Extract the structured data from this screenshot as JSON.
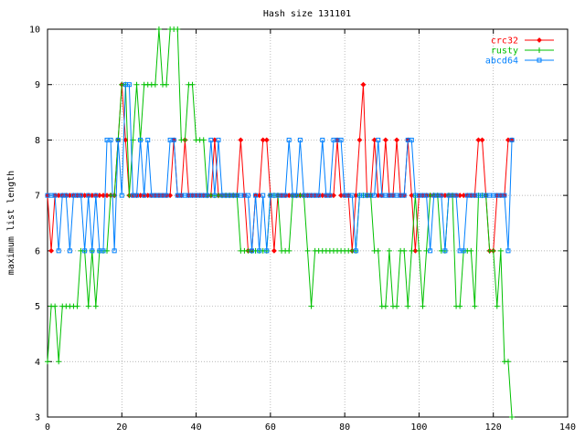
{
  "chart_data": {
    "type": "line",
    "title": "Hash size 131101",
    "xlabel": "",
    "ylabel": "maximum list length",
    "xlim": [
      0,
      140
    ],
    "ylim": [
      3,
      10
    ],
    "xticks": [
      0,
      20,
      40,
      60,
      80,
      100,
      120,
      140
    ],
    "yticks": [
      3,
      4,
      5,
      6,
      7,
      8,
      9,
      10
    ],
    "grid": true,
    "legend": "top-right",
    "series": [
      {
        "name": "crc32",
        "color": "#ff0000",
        "marker": "diamond",
        "x": [
          0,
          1,
          2,
          3,
          4,
          5,
          6,
          7,
          8,
          9,
          10,
          11,
          12,
          13,
          14,
          15,
          16,
          17,
          18,
          19,
          20,
          21,
          22,
          23,
          24,
          25,
          26,
          27,
          28,
          29,
          30,
          31,
          32,
          33,
          34,
          35,
          36,
          37,
          38,
          39,
          40,
          41,
          42,
          43,
          44,
          45,
          46,
          47,
          48,
          49,
          50,
          51,
          52,
          53,
          54,
          55,
          56,
          57,
          58,
          59,
          60,
          61,
          62,
          63,
          64,
          65,
          66,
          67,
          68,
          69,
          70,
          71,
          72,
          73,
          74,
          75,
          76,
          77,
          78,
          79,
          80,
          81,
          82,
          83,
          84,
          85,
          86,
          87,
          88,
          89,
          90,
          91,
          92,
          93,
          94,
          95,
          96,
          97,
          98,
          99,
          100,
          101,
          102,
          103,
          104,
          105,
          106,
          107,
          108,
          109,
          110,
          111,
          112,
          113,
          114,
          115,
          116,
          117,
          118,
          119,
          120,
          121,
          122,
          123,
          124,
          125
        ],
        "values": [
          7,
          6,
          7,
          7,
          7,
          7,
          7,
          7,
          7,
          7,
          7,
          7,
          7,
          7,
          7,
          7,
          7,
          7,
          7,
          8,
          9,
          8,
          7,
          7,
          7,
          7,
          7,
          7,
          7,
          7,
          7,
          7,
          7,
          7,
          8,
          7,
          7,
          8,
          7,
          7,
          7,
          7,
          7,
          7,
          7,
          8,
          7,
          7,
          7,
          7,
          7,
          7,
          8,
          7,
          6,
          6,
          7,
          7,
          8,
          8,
          7,
          6,
          7,
          7,
          7,
          7,
          7,
          7,
          7,
          7,
          7,
          7,
          7,
          7,
          7,
          7,
          7,
          7,
          8,
          7,
          7,
          7,
          6,
          7,
          8,
          9,
          7,
          7,
          8,
          7,
          7,
          8,
          7,
          7,
          8,
          7,
          7,
          8,
          7,
          6,
          7,
          7,
          7,
          7,
          7,
          7,
          7,
          7,
          7,
          7,
          7,
          7,
          7,
          7,
          7,
          7,
          8,
          8,
          7,
          6,
          6,
          7,
          7,
          7,
          8,
          8
        ]
      },
      {
        "name": "rusty",
        "color": "#00c000",
        "marker": "plus",
        "x": [
          0,
          1,
          2,
          3,
          4,
          5,
          6,
          7,
          8,
          9,
          10,
          11,
          12,
          13,
          14,
          15,
          16,
          17,
          18,
          19,
          20,
          21,
          22,
          23,
          24,
          25,
          26,
          27,
          28,
          29,
          30,
          31,
          32,
          33,
          34,
          35,
          36,
          37,
          38,
          39,
          40,
          41,
          42,
          43,
          44,
          45,
          46,
          47,
          48,
          49,
          50,
          51,
          52,
          53,
          54,
          55,
          56,
          57,
          58,
          59,
          60,
          61,
          62,
          63,
          64,
          65,
          66,
          67,
          68,
          69,
          70,
          71,
          72,
          73,
          74,
          75,
          76,
          77,
          78,
          79,
          80,
          81,
          82,
          83,
          84,
          85,
          86,
          87,
          88,
          89,
          90,
          91,
          92,
          93,
          94,
          95,
          96,
          97,
          98,
          99,
          100,
          101,
          102,
          103,
          104,
          105,
          106,
          107,
          108,
          109,
          110,
          111,
          112,
          113,
          114,
          115,
          116,
          117,
          118,
          119,
          120,
          121,
          122,
          123,
          124,
          125
        ],
        "values": [
          4,
          5,
          5,
          4,
          5,
          5,
          5,
          5,
          5,
          6,
          6,
          5,
          6,
          5,
          6,
          6,
          6,
          7,
          7,
          8,
          9,
          9,
          7,
          8,
          9,
          8,
          9,
          9,
          9,
          9,
          10,
          9,
          9,
          10,
          10,
          10,
          8,
          8,
          9,
          9,
          8,
          8,
          8,
          7,
          7,
          7,
          7,
          7,
          7,
          7,
          7,
          7,
          6,
          6,
          6,
          6,
          6,
          6,
          6,
          6,
          7,
          7,
          7,
          6,
          6,
          6,
          7,
          7,
          7,
          7,
          6,
          5,
          6,
          6,
          6,
          6,
          6,
          6,
          6,
          6,
          6,
          6,
          6,
          6,
          7,
          7,
          7,
          7,
          6,
          6,
          5,
          5,
          6,
          5,
          5,
          6,
          6,
          5,
          6,
          7,
          6,
          5,
          6,
          7,
          7,
          7,
          6,
          6,
          7,
          7,
          5,
          5,
          6,
          6,
          6,
          5,
          7,
          7,
          7,
          6,
          6,
          5,
          6,
          4,
          4,
          3
        ]
      },
      {
        "name": "abcd64",
        "color": "#0080ff",
        "marker": "square",
        "x": [
          0,
          1,
          2,
          3,
          4,
          5,
          6,
          7,
          8,
          9,
          10,
          11,
          12,
          13,
          14,
          15,
          16,
          17,
          18,
          19,
          20,
          21,
          22,
          23,
          24,
          25,
          26,
          27,
          28,
          29,
          30,
          31,
          32,
          33,
          34,
          35,
          36,
          37,
          38,
          39,
          40,
          41,
          42,
          43,
          44,
          45,
          46,
          47,
          48,
          49,
          50,
          51,
          52,
          53,
          54,
          55,
          56,
          57,
          58,
          59,
          60,
          61,
          62,
          63,
          64,
          65,
          66,
          67,
          68,
          69,
          70,
          71,
          72,
          73,
          74,
          75,
          76,
          77,
          78,
          79,
          80,
          81,
          82,
          83,
          84,
          85,
          86,
          87,
          88,
          89,
          90,
          91,
          92,
          93,
          94,
          95,
          96,
          97,
          98,
          99,
          100,
          101,
          102,
          103,
          104,
          105,
          106,
          107,
          108,
          109,
          110,
          111,
          112,
          113,
          114,
          115,
          116,
          117,
          118,
          119,
          120,
          121,
          122,
          123,
          124,
          125
        ],
        "values": [
          7,
          7,
          7,
          6,
          7,
          7,
          6,
          7,
          7,
          7,
          6,
          7,
          6,
          7,
          6,
          6,
          8,
          8,
          6,
          8,
          7,
          9,
          9,
          7,
          7,
          8,
          7,
          8,
          7,
          7,
          7,
          7,
          7,
          8,
          8,
          7,
          7,
          7,
          7,
          7,
          7,
          7,
          7,
          7,
          8,
          7,
          8,
          7,
          7,
          7,
          7,
          7,
          7,
          7,
          7,
          6,
          7,
          6,
          7,
          6,
          7,
          7,
          7,
          7,
          7,
          8,
          7,
          7,
          8,
          7,
          7,
          7,
          7,
          7,
          8,
          7,
          7,
          8,
          8,
          8,
          7,
          7,
          7,
          6,
          7,
          7,
          7,
          7,
          7,
          8,
          7,
          7,
          7,
          7,
          7,
          7,
          7,
          8,
          8,
          7,
          7,
          7,
          7,
          6,
          7,
          7,
          7,
          6,
          7,
          7,
          7,
          6,
          6,
          7,
          7,
          7,
          7,
          7,
          7,
          7,
          7,
          7,
          7,
          7,
          6,
          8
        ]
      }
    ]
  }
}
